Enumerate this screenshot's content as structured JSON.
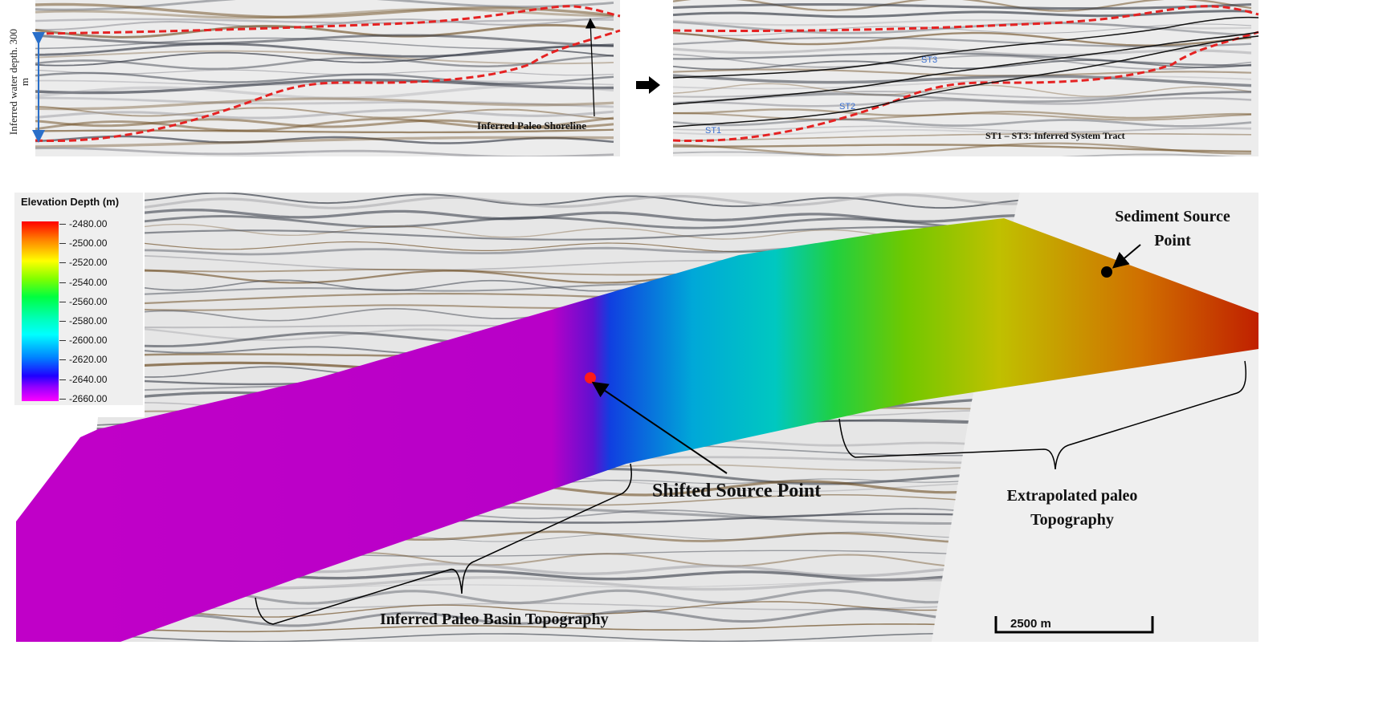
{
  "top_left_panel": {
    "water_depth_label": "Inferred water depth. 300 m",
    "shoreline_label": "Inferred Paleo Shoreline"
  },
  "top_right_panel": {
    "tracts": [
      "ST1",
      "ST2",
      "ST3"
    ],
    "caption": "ST1 – ST3: Inferred System Tract"
  },
  "legend": {
    "title": "Elevation Depth (m)",
    "ticks": [
      "-2480.00",
      "-2500.00",
      "-2520.00",
      "-2540.00",
      "-2560.00",
      "-2580.00",
      "-2600.00",
      "-2620.00",
      "-2640.00",
      "-2660.00"
    ]
  },
  "annotations": {
    "sediment_source": "Sediment Source Point",
    "shifted_source": "Shifted Source Point",
    "extrapolated": "Extrapolated paleo Topography",
    "inferred_basin": "Inferred Paleo Basin Topography",
    "scale_bar": "2500 m"
  },
  "colors": {
    "horizon_dashed": "#e52222",
    "tract_label": "#3a6fd0",
    "shifted_point": "#ff1a1a",
    "source_point": "#000000",
    "depth_arrow": "#2a6fc9"
  }
}
